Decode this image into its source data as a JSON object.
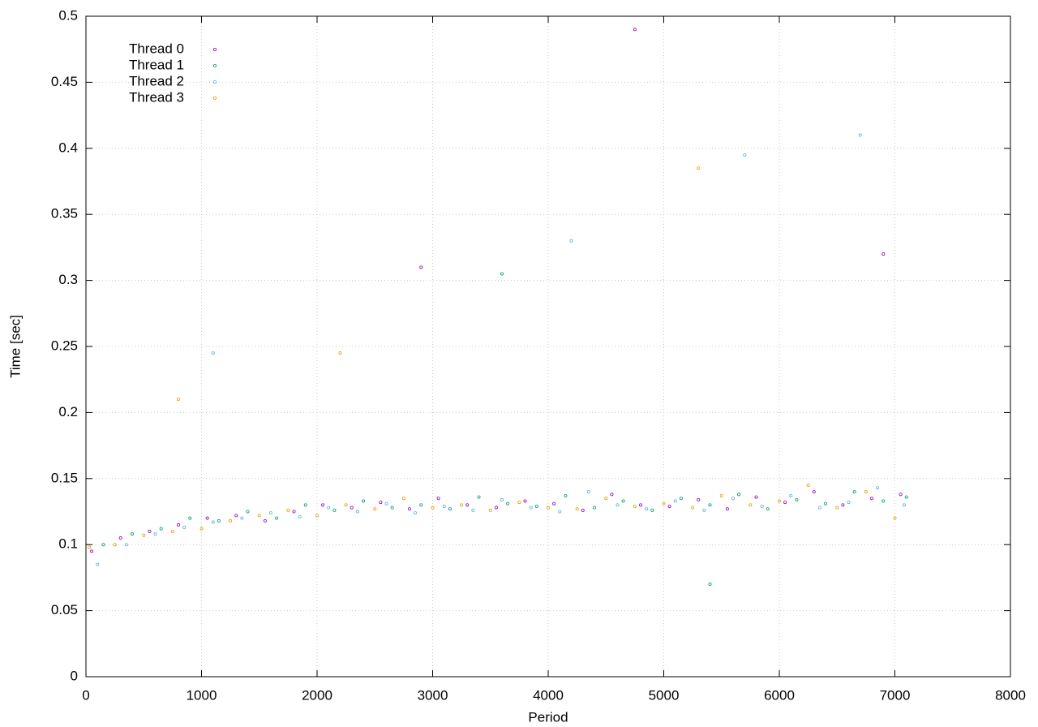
{
  "chart_data": {
    "type": "scatter",
    "xlabel": "Period",
    "ylabel": "Time [sec]",
    "xlim": [
      0,
      8000
    ],
    "xticks": [
      0,
      1000,
      2000,
      3000,
      4000,
      5000,
      6000,
      7000,
      8000
    ],
    "ylim": [
      0,
      0.5
    ],
    "yticks": [
      0,
      0.05,
      0.1,
      0.15,
      0.2,
      0.25,
      0.3,
      0.35,
      0.4,
      0.45,
      0.5
    ],
    "grid": true,
    "legend": "top-left",
    "series": [
      {
        "name": "Thread 0",
        "color": "#9400d3",
        "x": [
          50,
          300,
          550,
          800,
          1050,
          1300,
          1550,
          1800,
          2050,
          2300,
          2550,
          2800,
          3050,
          3300,
          3550,
          3800,
          4050,
          4300,
          4550,
          4800,
          5050,
          5300,
          5550,
          5800,
          6050,
          6300,
          6550,
          6800,
          7050,
          4750,
          2900,
          6900
        ],
        "values": [
          0.095,
          0.105,
          0.11,
          0.115,
          0.12,
          0.122,
          0.118,
          0.125,
          0.13,
          0.128,
          0.132,
          0.127,
          0.135,
          0.13,
          0.128,
          0.133,
          0.131,
          0.126,
          0.138,
          0.13,
          0.129,
          0.134,
          0.127,
          0.136,
          0.132,
          0.14,
          0.13,
          0.135,
          0.138,
          0.49,
          0.31,
          0.32
        ]
      },
      {
        "name": "Thread 1",
        "color": "#009e73",
        "x": [
          150,
          400,
          650,
          900,
          1150,
          1400,
          1650,
          1900,
          2150,
          2400,
          2650,
          2900,
          3150,
          3400,
          3650,
          3900,
          4150,
          4400,
          4650,
          4900,
          5150,
          5400,
          5650,
          5900,
          6150,
          6400,
          6650,
          6900,
          7100,
          5400,
          3600
        ],
        "values": [
          0.1,
          0.108,
          0.112,
          0.12,
          0.118,
          0.125,
          0.12,
          0.13,
          0.126,
          0.133,
          0.128,
          0.13,
          0.127,
          0.136,
          0.131,
          0.129,
          0.137,
          0.128,
          0.133,
          0.126,
          0.135,
          0.13,
          0.138,
          0.127,
          0.134,
          0.131,
          0.14,
          0.133,
          0.136,
          0.07,
          0.305
        ]
      },
      {
        "name": "Thread 2",
        "color": "#56b4e9",
        "x": [
          100,
          350,
          600,
          850,
          1100,
          1350,
          1600,
          1850,
          2100,
          2350,
          2600,
          2850,
          3100,
          3350,
          3600,
          3850,
          4100,
          4350,
          4600,
          4850,
          5100,
          5350,
          5600,
          5850,
          6100,
          6350,
          6600,
          6850,
          7080,
          1100,
          4200,
          5700,
          6700
        ],
        "values": [
          0.085,
          0.1,
          0.108,
          0.113,
          0.117,
          0.12,
          0.124,
          0.121,
          0.128,
          0.125,
          0.131,
          0.124,
          0.129,
          0.126,
          0.134,
          0.128,
          0.125,
          0.14,
          0.13,
          0.127,
          0.133,
          0.126,
          0.135,
          0.129,
          0.137,
          0.128,
          0.132,
          0.143,
          0.13,
          0.245,
          0.33,
          0.395,
          0.41
        ]
      },
      {
        "name": "Thread 3",
        "color": "#e69f00",
        "x": [
          30,
          250,
          500,
          750,
          1000,
          1250,
          1500,
          1750,
          2000,
          2250,
          2500,
          2750,
          3000,
          3250,
          3500,
          3750,
          4000,
          4250,
          4500,
          4750,
          5000,
          5250,
          5500,
          5750,
          6000,
          6250,
          6500,
          6750,
          7000,
          800,
          2200,
          5300
        ],
        "values": [
          0.098,
          0.1,
          0.107,
          0.11,
          0.112,
          0.118,
          0.122,
          0.126,
          0.122,
          0.13,
          0.127,
          0.135,
          0.128,
          0.13,
          0.126,
          0.132,
          0.128,
          0.127,
          0.135,
          0.129,
          0.131,
          0.128,
          0.137,
          0.13,
          0.133,
          0.145,
          0.128,
          0.14,
          0.12,
          0.21,
          0.245,
          0.385
        ]
      }
    ]
  }
}
